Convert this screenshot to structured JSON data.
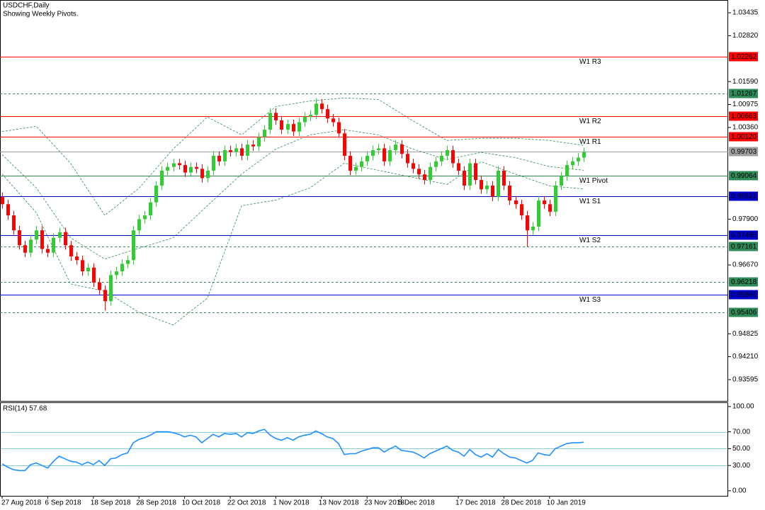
{
  "chart_data": {
    "type": "candlestick",
    "title": "USDCHF,Daily",
    "subtitle": "Showing Weekly Pivots.",
    "categories": [
      "27 Aug 2018",
      null,
      null,
      null,
      null,
      null,
      null,
      null,
      "6 Sep 2018",
      null,
      null,
      null,
      null,
      null,
      null,
      null,
      "18 Sep 2018",
      null,
      null,
      null,
      null,
      null,
      null,
      null,
      "28 Sep 2018",
      null,
      null,
      null,
      null,
      null,
      null,
      null,
      "10 Oct 2018",
      null,
      null,
      null,
      null,
      null,
      null,
      null,
      "22 Oct 2018",
      null,
      null,
      null,
      null,
      null,
      null,
      null,
      "1 Nov 2018",
      null,
      null,
      null,
      null,
      null,
      null,
      null,
      "13 Nov 2018",
      null,
      null,
      null,
      null,
      null,
      null,
      null,
      "23 Nov 2018",
      null,
      null,
      null,
      null,
      null,
      "5 Dec 2018",
      null,
      null,
      null,
      null,
      null,
      null,
      null,
      null,
      null,
      "17 Dec 2018",
      null,
      null,
      null,
      null,
      null,
      null,
      null,
      "28 Dec 2018",
      null,
      null,
      null,
      null,
      null,
      null,
      null,
      "10 Jan 2019",
      null,
      null,
      null,
      null,
      null,
      null
    ],
    "open": [
      0.985,
      0.983,
      0.98,
      0.976,
      0.972,
      0.97,
      0.9735,
      0.976,
      0.971,
      0.97,
      0.974,
      0.9755,
      0.972,
      0.969,
      0.968,
      0.965,
      0.966,
      0.962,
      0.96,
      0.957,
      0.964,
      0.965,
      0.967,
      0.968,
      0.976,
      0.979,
      0.98,
      0.9835,
      0.988,
      0.992,
      0.993,
      0.994,
      0.9935,
      0.9915,
      0.993,
      0.9925,
      0.99,
      0.992,
      0.996,
      0.9945,
      0.9975,
      0.997,
      0.998,
      0.996,
      0.999,
      0.9985,
      1.001,
      1.003,
      1.0075,
      1.0055,
      1.003,
      1.0045,
      1.0025,
      1.005,
      1.0065,
      1.007,
      1.01,
      1.0085,
      1.006,
      1.005,
      1.002,
      0.996,
      0.992,
      0.993,
      0.9945,
      0.996,
      0.9975,
      0.998,
      0.9945,
      0.9975,
      0.999,
      0.9965,
      0.994,
      0.9925,
      0.991,
      0.9895,
      0.993,
      0.9945,
      0.996,
      0.9975,
      0.994,
      0.992,
      0.988,
      0.994,
      0.9895,
      0.987,
      0.988,
      0.985,
      0.992,
      0.988,
      0.984,
      0.983,
      0.98,
      0.976,
      0.977,
      0.984,
      0.983,
      0.981,
      0.988,
      0.9905,
      0.9935,
      0.9945,
      0.9955
    ],
    "high": [
      0.9862,
      0.9842,
      0.9812,
      0.9772,
      0.9732,
      0.9747,
      0.9772,
      0.9772,
      0.9722,
      0.9752,
      0.9767,
      0.9767,
      0.9732,
      0.9702,
      0.9692,
      0.9672,
      0.9672,
      0.9632,
      0.9612,
      0.9652,
      0.9662,
      0.9682,
      0.9692,
      0.9772,
      0.9802,
      0.9812,
      0.9847,
      0.9892,
      0.9932,
      0.9942,
      0.9952,
      0.9952,
      0.9947,
      0.9942,
      0.9942,
      0.9937,
      0.9932,
      0.9972,
      0.9972,
      0.9987,
      0.9987,
      0.9992,
      0.9992,
      1.0002,
      1.0002,
      1.0022,
      1.0042,
      1.0087,
      1.0087,
      1.0067,
      1.0057,
      1.0057,
      1.0062,
      1.0077,
      1.0082,
      1.0115,
      1.0112,
      1.0097,
      1.0072,
      1.0062,
      1.0032,
      0.9972,
      0.9942,
      0.9957,
      0.9972,
      0.9987,
      0.9992,
      0.9992,
      0.9987,
      1.0002,
      1.0002,
      0.9977,
      0.9952,
      0.9937,
      0.9922,
      0.9942,
      0.9957,
      0.9972,
      0.9987,
      0.9987,
      0.9952,
      0.9932,
      0.9952,
      0.9952,
      0.9907,
      0.9892,
      0.9892,
      0.9932,
      0.9932,
      0.9892,
      0.9852,
      0.9842,
      0.9812,
      0.9782,
      0.9852,
      0.9852,
      0.9842,
      0.9892,
      0.9917,
      0.9947,
      0.9957,
      0.9967,
      0.9982
    ],
    "low": [
      0.9818,
      0.9788,
      0.9748,
      0.9708,
      0.9688,
      0.9688,
      0.9723,
      0.9698,
      0.9688,
      0.9688,
      0.9728,
      0.9708,
      0.9678,
      0.9668,
      0.9638,
      0.9638,
      0.9608,
      0.9588,
      0.9545,
      0.9558,
      0.9628,
      0.9638,
      0.9658,
      0.9668,
      0.9748,
      0.9778,
      0.9788,
      0.9823,
      0.9868,
      0.9908,
      0.9918,
      0.9923,
      0.9903,
      0.9903,
      0.9913,
      0.9888,
      0.9888,
      0.9908,
      0.9933,
      0.9933,
      0.9958,
      0.9958,
      0.9948,
      0.9948,
      0.9973,
      0.9973,
      0.9998,
      1.0018,
      1.0043,
      1.0018,
      1.0018,
      1.0013,
      1.0013,
      1.0038,
      1.0053,
      1.0058,
      1.0073,
      1.0048,
      1.0038,
      1.0008,
      0.9948,
      0.9908,
      0.9908,
      0.9918,
      0.9933,
      0.9948,
      0.9963,
      0.9933,
      0.9933,
      0.9963,
      0.9953,
      0.9928,
      0.9913,
      0.9898,
      0.9883,
      0.9883,
      0.9918,
      0.9933,
      0.9948,
      0.9928,
      0.9908,
      0.9868,
      0.9868,
      0.9883,
      0.9858,
      0.9858,
      0.9838,
      0.9838,
      0.9868,
      0.9828,
      0.9818,
      0.9788,
      0.9716,
      0.9748,
      0.9758,
      0.9818,
      0.9798,
      0.9798,
      0.9868,
      0.9893,
      0.9923,
      0.9933,
      0.9943
    ],
    "close": [
      0.983,
      0.98,
      0.976,
      0.972,
      0.97,
      0.9735,
      0.976,
      0.971,
      0.97,
      0.974,
      0.9755,
      0.972,
      0.969,
      0.968,
      0.965,
      0.966,
      0.962,
      0.96,
      0.957,
      0.964,
      0.965,
      0.967,
      0.968,
      0.976,
      0.979,
      0.98,
      0.9835,
      0.988,
      0.992,
      0.993,
      0.994,
      0.9935,
      0.9915,
      0.993,
      0.9925,
      0.99,
      0.992,
      0.996,
      0.9945,
      0.9975,
      0.997,
      0.998,
      0.996,
      0.999,
      0.9985,
      1.001,
      1.003,
      1.0075,
      1.0055,
      1.003,
      1.0045,
      1.0025,
      1.005,
      1.0065,
      1.007,
      1.01,
      1.0085,
      1.006,
      1.005,
      1.002,
      0.996,
      0.992,
      0.993,
      0.9945,
      0.996,
      0.9975,
      0.998,
      0.9945,
      0.9975,
      0.999,
      0.9965,
      0.994,
      0.9925,
      0.991,
      0.9895,
      0.993,
      0.9945,
      0.996,
      0.9975,
      0.994,
      0.992,
      0.988,
      0.994,
      0.9895,
      0.987,
      0.988,
      0.985,
      0.992,
      0.988,
      0.984,
      0.983,
      0.98,
      0.976,
      0.977,
      0.984,
      0.983,
      0.981,
      0.988,
      0.9905,
      0.9935,
      0.9945,
      0.9955,
      0.997
    ],
    "up_color": "#32cd32",
    "down_color": "#ff0000",
    "ylim": [
      0.93024,
      1.03778
    ],
    "yticks": [
      1.03435,
      {
        "value": 1.0282,
        "label": "1.02820"
      },
      {
        "value": 1.0159,
        "label": "1.01590"
      },
      1.00975,
      {
        "value": 1.0036,
        "label": "1.00360"
      },
      {
        "value": 0.979,
        "label": "0.97900"
      },
      {
        "value": 0.9667,
        "label": "0.96670"
      },
      0.94825,
      {
        "value": 0.9421,
        "label": "0.94210"
      },
      0.93595
    ],
    "bollinger": {
      "color": "#2e8b57",
      "x": [
        0,
        6,
        12,
        18,
        24,
        30,
        36,
        42,
        48,
        54,
        60,
        66,
        72,
        78,
        84,
        90,
        96,
        102
      ],
      "upper": [
        1.0025,
        1.0039,
        0.994,
        0.98,
        0.9873,
        0.9978,
        1.0064,
        1.0016,
        1.0092,
        1.0107,
        1.0115,
        1.0111,
        1.0054,
        1.0001,
        1.0007,
        1.0007,
        1.0001,
        0.9988
      ],
      "middle": [
        0.9963,
        0.9874,
        0.974,
        0.9683,
        0.9712,
        0.974,
        0.9826,
        0.9911,
        0.9978,
        1.0016,
        1.003,
        1.0016,
        0.9978,
        0.995,
        0.9969,
        0.9955,
        0.9931,
        0.9921
      ],
      "lower": [
        0.9911,
        0.9807,
        0.9616,
        0.9597,
        0.954,
        0.9506,
        0.9578,
        0.9826,
        0.9841,
        0.9874,
        0.994,
        0.9921,
        0.9902,
        0.9883,
        0.9944,
        0.9911,
        0.9879,
        0.9871
      ]
    },
    "levels": [
      {
        "name": "W1 R3",
        "price": 1.02262,
        "color": "#ff0000",
        "style": "solid"
      },
      {
        "price": 1.01267,
        "color": "#2e8b57",
        "style": "dashed"
      },
      {
        "name": "W1 R2",
        "price": 1.00663,
        "color": "#ff0000",
        "style": "solid"
      },
      {
        "name": "W1 R1",
        "price": {
          "value": 1.0012,
          "label": "1.00120"
        },
        "color": "#ff0000",
        "style": "solid"
      },
      {
        "price": 0.99703,
        "color": "#a0a0a0",
        "style": "solid"
      },
      {
        "name": "W1 Pivot",
        "price": 0.99064,
        "color": "#2e8b57",
        "style": "solid"
      },
      {
        "name": "W1 S1",
        "price": 0.98521,
        "color": "#0000cd",
        "style": "solid"
      },
      {
        "name": "W1 S2",
        "price": 0.97465,
        "color": "#0000cd",
        "style": "solid"
      },
      {
        "price": 0.97161,
        "color": "#2e8b57",
        "style": "dashed"
      },
      {
        "price": 0.96218,
        "color": "#2e8b57",
        "style": "dashed"
      },
      {
        "name": "W1 S3",
        "price": 0.95866,
        "color": "#0000cd",
        "style": "solid"
      },
      {
        "price": 0.95406,
        "color": "#2e8b57",
        "style": "dashed"
      }
    ],
    "rsi": {
      "title": "RSI(14) 57.68",
      "color": "#1e90ff",
      "level_color": "#87ceeb",
      "ylim": [
        -6,
        105
      ],
      "yticks": [
        {
          "value": 100,
          "label": "100.00"
        },
        {
          "value": 70,
          "label": "70.00"
        },
        {
          "value": 50,
          "label": "50.00"
        },
        {
          "value": 30,
          "label": "30.00"
        },
        {
          "value": 0,
          "label": "0.00"
        }
      ],
      "levels": [
        70,
        50,
        30
      ],
      "values": [
        32,
        28,
        25,
        24,
        24,
        31,
        33,
        30,
        27,
        35,
        41,
        38,
        35,
        34,
        31,
        34,
        31,
        36,
        30,
        38,
        39,
        43,
        45,
        57,
        61,
        63,
        66,
        70,
        70,
        70,
        69,
        67,
        64,
        66,
        64,
        57,
        62,
        67,
        64,
        68,
        67,
        68,
        64,
        69,
        68,
        71,
        73,
        66,
        62,
        60,
        63,
        60,
        64,
        66,
        67,
        71,
        68,
        64,
        62,
        56,
        43,
        44,
        44,
        47,
        49,
        51,
        51,
        46,
        50,
        53,
        48,
        47,
        46,
        43,
        39,
        44,
        47,
        50,
        53,
        48,
        46,
        41,
        49,
        43,
        40,
        44,
        40,
        49,
        44,
        40,
        39,
        36,
        33,
        36,
        45,
        43,
        42,
        50,
        53,
        56,
        57,
        57,
        57.68
      ]
    }
  }
}
